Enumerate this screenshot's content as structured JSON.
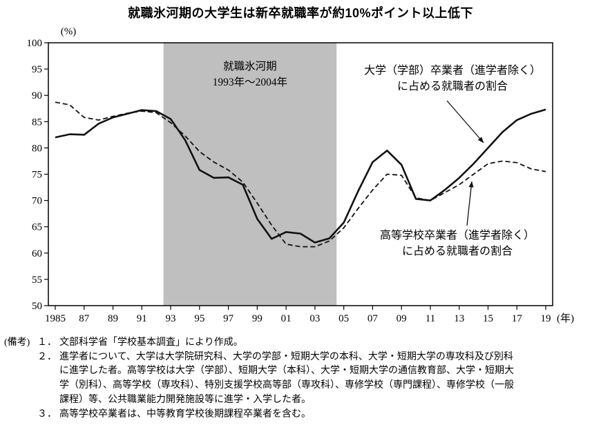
{
  "chart_data": {
    "type": "line",
    "title": "就職氷河期の大学生は新卒就職率が約10%ポイント以上低下",
    "y_unit_label": "(%)",
    "x_unit_label": "(年)",
    "ylim": [
      50,
      100
    ],
    "grid": false,
    "ytick_values": [
      50,
      55,
      60,
      65,
      70,
      75,
      80,
      85,
      90,
      95,
      100
    ],
    "years": [
      1985,
      1986,
      1987,
      1988,
      1989,
      1990,
      1991,
      1992,
      1993,
      1994,
      1995,
      1996,
      1997,
      1998,
      1999,
      2000,
      2001,
      2002,
      2003,
      2004,
      2005,
      2006,
      2007,
      2008,
      2009,
      2010,
      2011,
      2012,
      2013,
      2014,
      2015,
      2016,
      2017,
      2018,
      2019
    ],
    "xticks": [
      {
        "year": 1985,
        "label": "1985"
      },
      {
        "year": 1987,
        "label": "87"
      },
      {
        "year": 1989,
        "label": "89"
      },
      {
        "year": 1991,
        "label": "91"
      },
      {
        "year": 1993,
        "label": "93"
      },
      {
        "year": 1995,
        "label": "95"
      },
      {
        "year": 1997,
        "label": "97"
      },
      {
        "year": 1999,
        "label": "99"
      },
      {
        "year": 2001,
        "label": "01"
      },
      {
        "year": 2003,
        "label": "03"
      },
      {
        "year": 2005,
        "label": "05"
      },
      {
        "year": 2007,
        "label": "07"
      },
      {
        "year": 2009,
        "label": "09"
      },
      {
        "year": 2011,
        "label": "11"
      },
      {
        "year": 2013,
        "label": "13"
      },
      {
        "year": 2015,
        "label": "15"
      },
      {
        "year": 2017,
        "label": "17"
      },
      {
        "year": 2019,
        "label": "19"
      }
    ],
    "shaded_band": {
      "from_year": 1992.5,
      "to_year": 2004.5,
      "color": "#bfbfbf",
      "label_lines": [
        "就職氷河期",
        "1993年～2004年"
      ]
    },
    "series": [
      {
        "name": "university",
        "label_lines": [
          "大学（学部）卒業者（進学者除く）",
          "に占める就職者の割合"
        ],
        "line_style": "solid",
        "color": "#111111",
        "values": [
          82.0,
          82.6,
          82.5,
          84.6,
          85.8,
          86.5,
          87.2,
          87.0,
          85.5,
          81.5,
          75.8,
          74.3,
          74.4,
          73.0,
          66.5,
          62.7,
          64.0,
          63.7,
          62.0,
          62.8,
          65.8,
          71.8,
          77.3,
          79.5,
          76.8,
          70.3,
          70.0,
          72.0,
          74.3,
          77.0,
          80.0,
          83.0,
          85.3,
          86.5,
          87.3
        ]
      },
      {
        "name": "highschool",
        "label_lines": [
          "高等学校卒業者（進学者除く）",
          "に占める就職者の割合"
        ],
        "line_style": "dashed",
        "color": "#111111",
        "values": [
          88.7,
          88.2,
          85.8,
          85.3,
          86.0,
          86.6,
          87.0,
          86.7,
          84.8,
          82.3,
          79.3,
          77.3,
          75.8,
          73.5,
          69.5,
          65.3,
          61.7,
          61.2,
          61.2,
          62.3,
          64.8,
          68.5,
          72.0,
          75.0,
          74.8,
          70.5,
          70.0,
          71.5,
          73.0,
          75.0,
          77.0,
          77.5,
          77.2,
          76.0,
          75.5
        ]
      }
    ]
  },
  "notes": {
    "label": "(備考)",
    "items": [
      {
        "num": "１．",
        "lines": [
          "文部科学省「学校基本調査」により作成。"
        ]
      },
      {
        "num": "２．",
        "lines": [
          "進学者について、大学は大学院研究科、大学の学部・短期大学の本科、大学・短期大学の専攻科及び別科",
          "に進学した者。高等学校は大学（学部）、短期大学（本科）、大学・短期大学の通信教育部、大学・短期大",
          "学（別科）、高等学校（専攻科）、特別支援学校高等部（専攻科）、専修学校（専門課程）、専修学校（一般",
          "課程）等、公共職業能力開発施設等に進学・入学した者。"
        ]
      },
      {
        "num": "３．",
        "lines": [
          "高等学校卒業者は、中等教育学校後期課程卒業者を含む。"
        ]
      }
    ]
  }
}
